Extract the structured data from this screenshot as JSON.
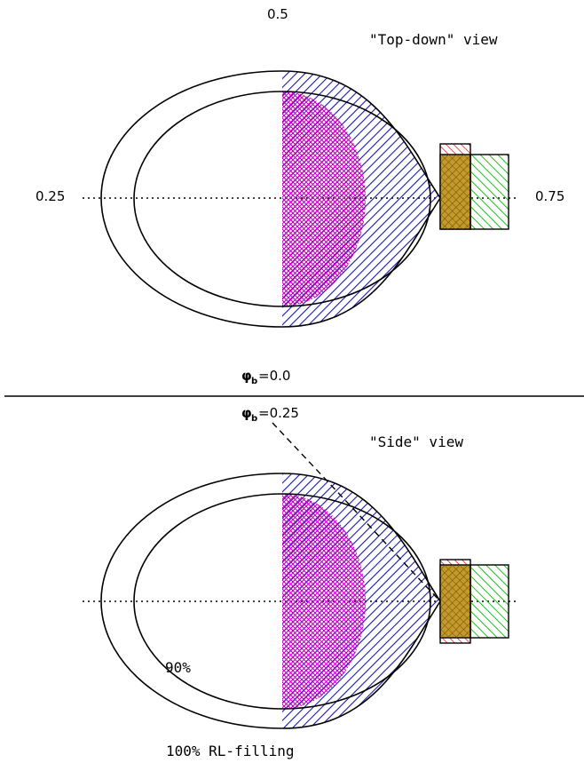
{
  "top_panel": {
    "view_title": "\"Top-down\" view",
    "phase_top": "0.5",
    "phase_left": "0.25",
    "phase_right": "0.75",
    "phase_bottom_symbol": "φ",
    "phase_bottom_sub": "b",
    "phase_bottom_value": "=0.0"
  },
  "bottom_panel": {
    "view_title": "\"Side\" view",
    "phase_symbol": "φ",
    "phase_sub": "b",
    "phase_value": "=0.25",
    "inner_label": "90%",
    "outer_label": "100% RL-filling"
  },
  "colors": {
    "blue_hatch": "#1a1aa8",
    "magenta_hatch": "#c000c0",
    "red_hatch": "#e0202a",
    "olive_fill": "#b38a1a",
    "green_hatch": "#20c020"
  }
}
